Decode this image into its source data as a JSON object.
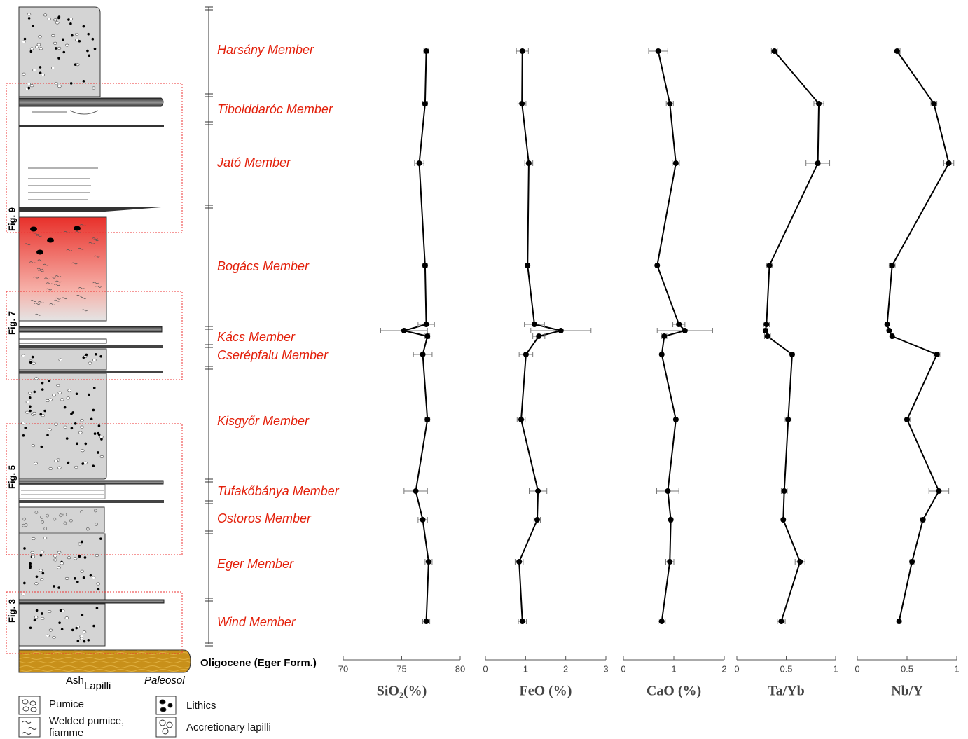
{
  "members": [
    "Harsány Member",
    "Tibolddaróc Member",
    "Jató Member",
    "Bogács Member",
    "Kács Member",
    "Cserépfalu Member",
    "Kisgyőr Member",
    "Tufakőbánya Member",
    "Ostoros Member",
    "Eger Member",
    "Wind Member"
  ],
  "base_label": "Oligocene (Eger Form.)",
  "column_labels": [
    "Ash",
    "Lapilli",
    "Paleosol"
  ],
  "figure_labels": [
    "Fig. 9",
    "Fig. 7",
    "Fig. 5",
    "Fig. 3"
  ],
  "legend": [
    "Pumice",
    "Welded pumice, fiamme",
    "Lithics",
    "Accretionary lapilli"
  ],
  "chart_data": [
    {
      "type": "line",
      "x_label": "SiO₂(%)",
      "xlim": [
        70,
        80
      ],
      "xticks": [
        70,
        75,
        80
      ],
      "color": "#000000",
      "values": [
        77.1,
        77.0,
        76.5,
        77.0,
        77.1,
        75.2,
        77.2,
        76.8,
        77.2,
        76.2,
        76.8,
        77.3,
        77.1
      ],
      "errors": [
        0.2,
        0.2,
        0.4,
        0.2,
        0.7,
        2.0,
        0.2,
        0.8,
        0.2,
        1.0,
        0.4,
        0.3,
        0.3
      ]
    },
    {
      "type": "line",
      "x_label": "FeO (%)",
      "xlim": [
        0,
        3
      ],
      "xticks": [
        0,
        1,
        2,
        3
      ],
      "color": "#000000",
      "values": [
        0.92,
        0.91,
        1.08,
        1.05,
        1.22,
        1.88,
        1.33,
        1.01,
        0.89,
        1.31,
        1.29,
        0.84,
        0.92
      ],
      "errors": [
        0.15,
        0.1,
        0.1,
        0.05,
        0.25,
        0.75,
        0.15,
        0.17,
        0.1,
        0.22,
        0.08,
        0.1,
        0.1
      ]
    },
    {
      "type": "line",
      "x_label": "CaO (%)",
      "xlim": [
        0,
        2
      ],
      "xticks": [
        0,
        1,
        2
      ],
      "color": "#000000",
      "values": [
        0.69,
        0.92,
        1.04,
        0.67,
        1.1,
        1.22,
        0.81,
        0.76,
        1.04,
        0.88,
        0.94,
        0.92,
        0.76
      ],
      "errors": [
        0.19,
        0.07,
        0.07,
        0.03,
        0.12,
        0.55,
        0.05,
        0.03,
        0.03,
        0.22,
        0.03,
        0.08,
        0.07
      ]
    },
    {
      "type": "line",
      "x_label": "Ta/Yb",
      "xlim": [
        0,
        1
      ],
      "xticks": [
        0,
        0.5,
        1
      ],
      "color": "#000000",
      "values": [
        0.38,
        0.83,
        0.82,
        0.33,
        0.3,
        0.29,
        0.31,
        0.56,
        0.52,
        0.48,
        0.47,
        0.64,
        0.45
      ],
      "errors": [
        0.03,
        0.05,
        0.12,
        0.03,
        0.03,
        0.02,
        0.03,
        0.02,
        0.03,
        0.03,
        0.01,
        0.05,
        0.04
      ]
    },
    {
      "type": "line",
      "x_label": "Nb/Y",
      "xlim": [
        0,
        1
      ],
      "xticks": [
        0,
        0.5,
        1
      ],
      "color": "#000000",
      "values": [
        0.4,
        0.77,
        0.92,
        0.35,
        0.3,
        0.32,
        0.35,
        0.8,
        0.5,
        0.82,
        0.66,
        0.55,
        0.42
      ],
      "errors": [
        0.03,
        0.03,
        0.05,
        0.03,
        0.01,
        0.01,
        0.01,
        0.03,
        0.03,
        0.1,
        0.02,
        0.02,
        0.02
      ]
    }
  ]
}
